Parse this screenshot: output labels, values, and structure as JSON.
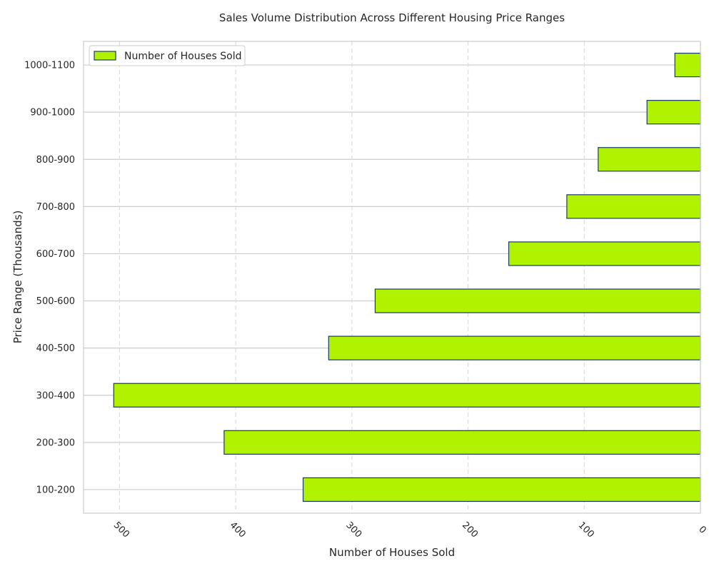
{
  "chart_data": {
    "type": "bar",
    "orientation": "horizontal",
    "title": "Sales Volume Distribution Across Different Housing Price Ranges",
    "xlabel": "Number of Houses Sold",
    "ylabel": "Price Range (Thousands)",
    "categories": [
      "100-200",
      "200-300",
      "300-400",
      "400-500",
      "500-600",
      "600-700",
      "700-800",
      "800-900",
      "900-1000",
      "1000-1100"
    ],
    "series": [
      {
        "name": "Number of Houses Sold",
        "values": [
          342,
          410,
          505,
          320,
          280,
          165,
          115,
          88,
          46,
          22
        ]
      }
    ],
    "xlim": [
      0,
      531
    ],
    "x_inverted": true,
    "xticks": [
      0,
      100,
      200,
      300,
      400,
      500
    ],
    "xtick_labels": [
      "0",
      "100",
      "200",
      "300",
      "400",
      "500"
    ],
    "grid": true,
    "legend_position": "top-left",
    "colors": {
      "bar_fill": "#b0f200",
      "bar_edge": "#1b3a6b",
      "grid": "#dddddd",
      "frame": "#cccccc"
    }
  }
}
